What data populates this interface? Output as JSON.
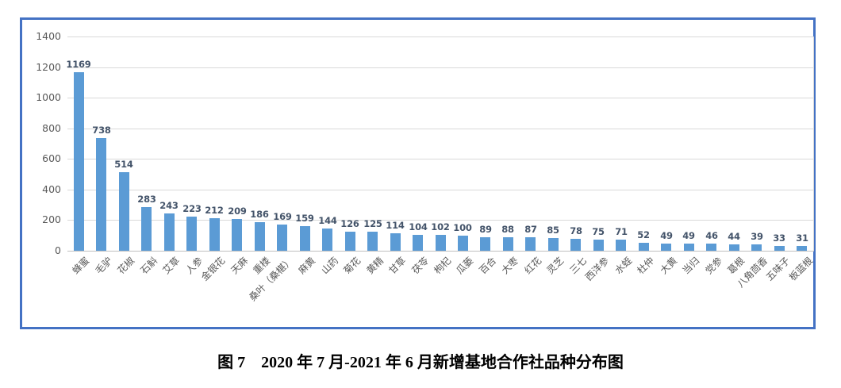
{
  "figure": {
    "caption": "图 7　2020 年 7 月-2021 年 6 月新增基地合作社品种分布图"
  },
  "colors": {
    "bar": "#5B9BD5",
    "data_label": "#44546A",
    "axis_label": "#595959",
    "gridline": "#D9D9D9",
    "axis_line": "#BFBFBF",
    "chart_border": "#4472C4",
    "background": "#FFFFFF"
  },
  "chart_data": {
    "type": "bar",
    "title": "",
    "xlabel": "",
    "ylabel": "",
    "categories": [
      "蜂蜜",
      "毛驴",
      "花椒",
      "石斛",
      "艾草",
      "人参",
      "金银花",
      "天麻",
      "重楼",
      "桑叶（桑椹）",
      "麻黄",
      "山药",
      "菊花",
      "黄精",
      "甘草",
      "茯苓",
      "枸杞",
      "瓜蒌",
      "百合",
      "大枣",
      "红花",
      "灵芝",
      "三七",
      "西洋参",
      "水蛭",
      "杜仲",
      "大黄",
      "当归",
      "党参",
      "葛根",
      "八角茴香",
      "五味子",
      "板蓝根"
    ],
    "values": [
      1169,
      738,
      514,
      283,
      243,
      223,
      212,
      209,
      186,
      169,
      159,
      144,
      126,
      125,
      114,
      104,
      102,
      100,
      89,
      88,
      87,
      85,
      78,
      75,
      71,
      52,
      49,
      49,
      46,
      44,
      39,
      33,
      31
    ],
    "y_ticks": [
      0,
      200,
      400,
      600,
      800,
      1000,
      1200,
      1400
    ],
    "ylim": [
      0,
      1400
    ],
    "grid": true,
    "data_labels": true,
    "x_tick_rotation": -45,
    "legend": "none"
  }
}
